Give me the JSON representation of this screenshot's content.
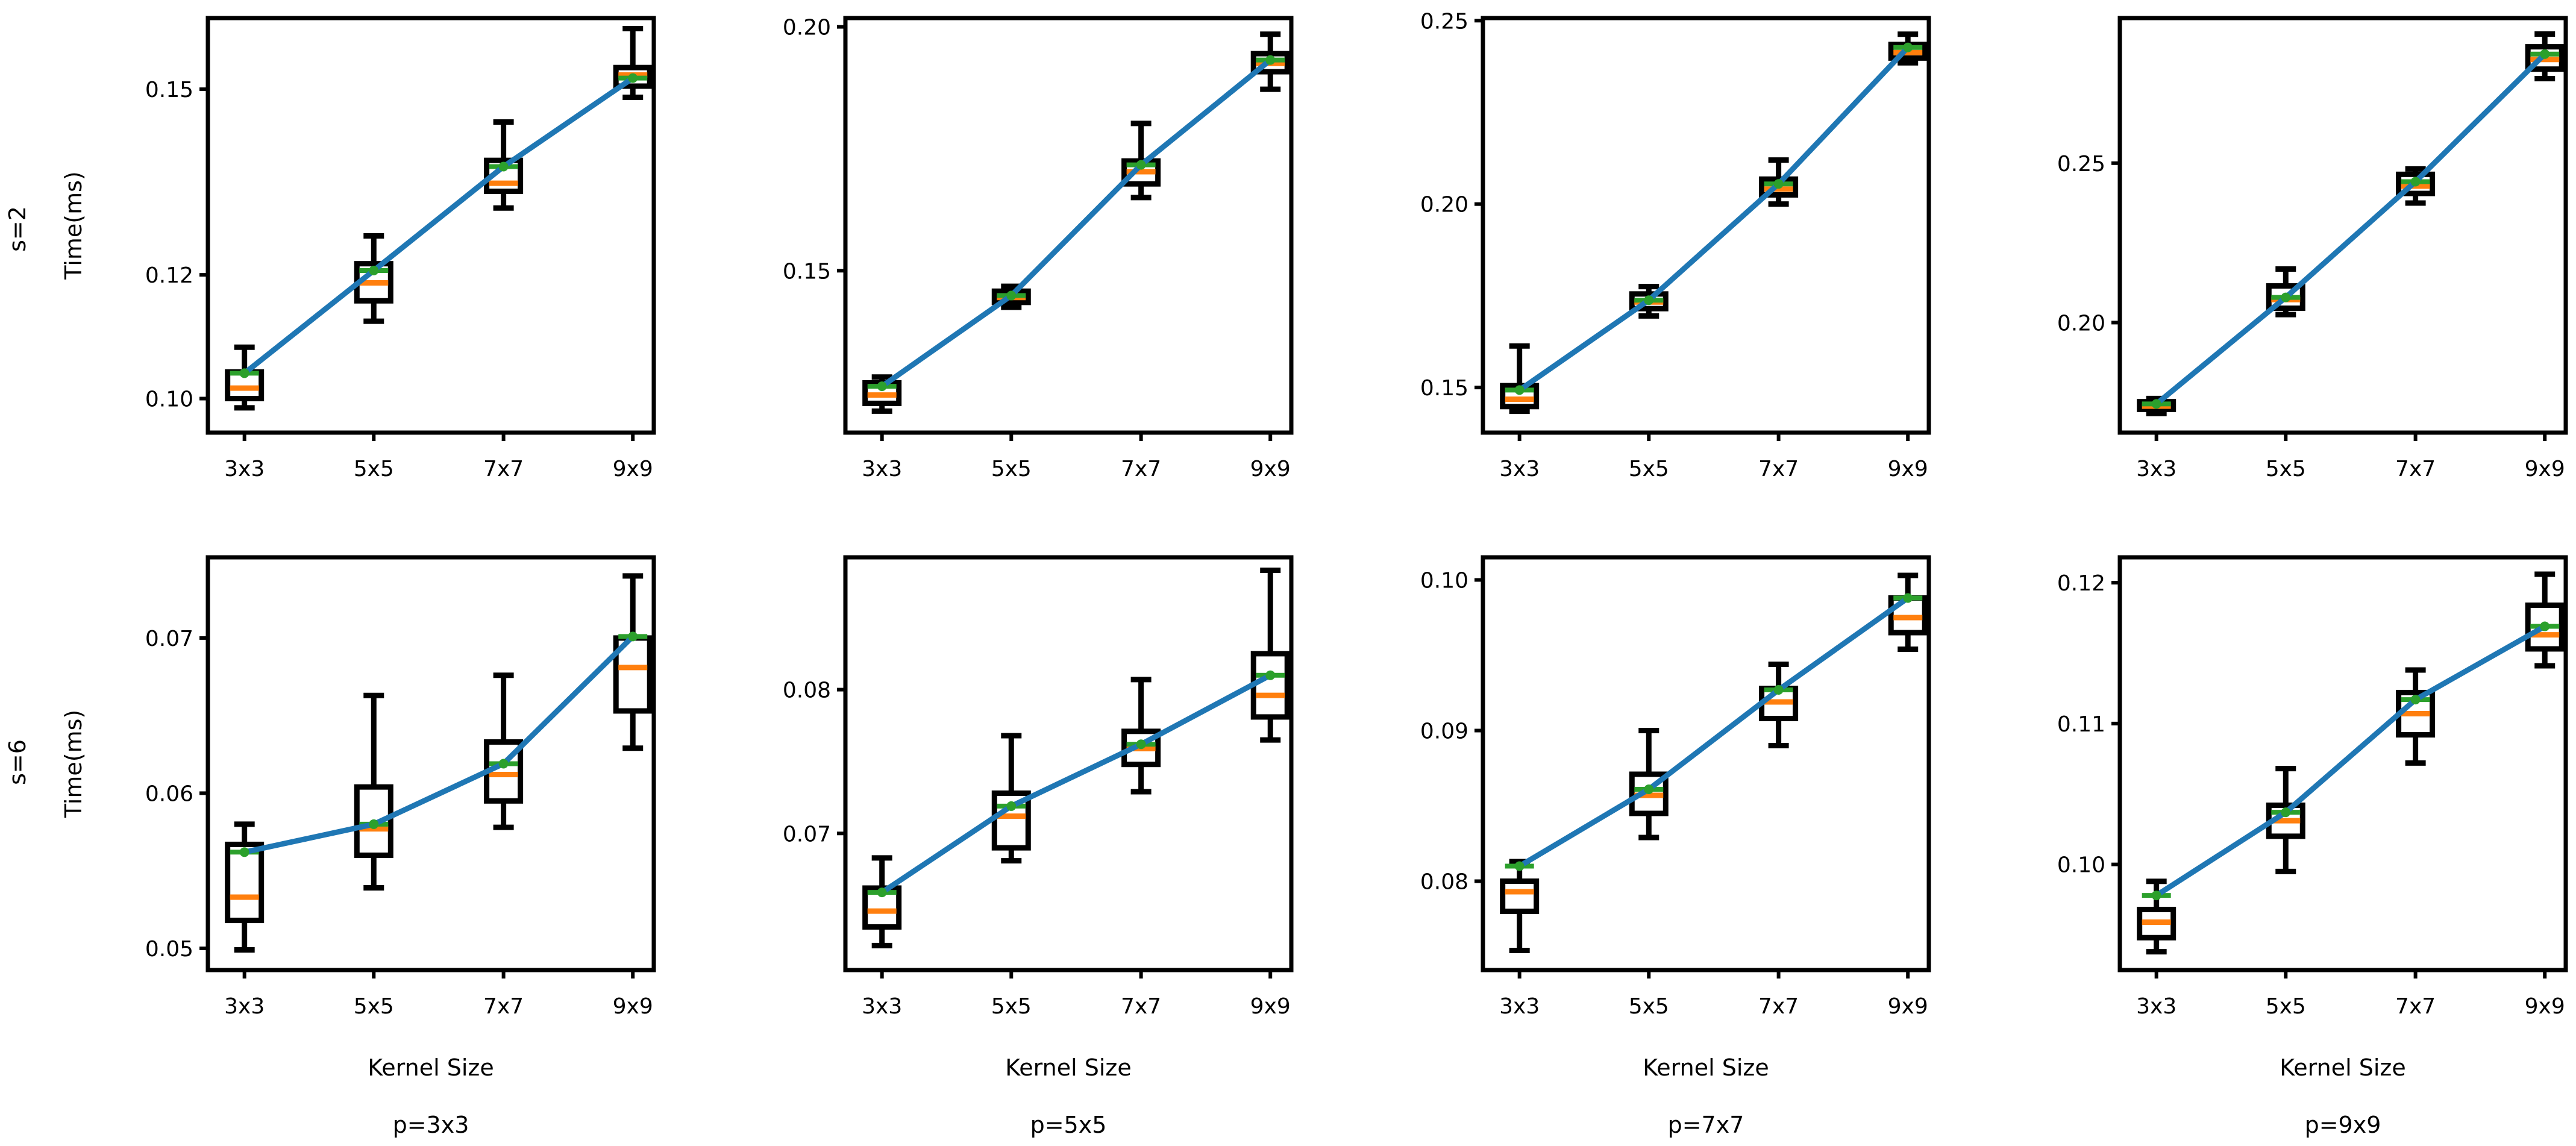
{
  "colors": {
    "line": "#1f77b4",
    "median": "#ff7f0e",
    "mean": "#2ca02c",
    "axes": "#000000"
  },
  "chart_data": {
    "type": "box",
    "title": "",
    "xlabel": "Kernel Size",
    "ylabel": "Time(ms)",
    "row_labels": [
      "s=2",
      "s=6"
    ],
    "col_labels": [
      "p=3x3",
      "p=5x5",
      "p=7x7",
      "p=9x9"
    ],
    "categories": [
      "3x3",
      "5x5",
      "7x7",
      "9x9"
    ],
    "panels": [
      {
        "row": 0,
        "col": 0,
        "ylim": [
          0.0945,
          0.1615
        ],
        "yticks": [
          0.1,
          0.12,
          0.15
        ],
        "ytick_labels": [
          "0.10",
          "0.12",
          "0.15"
        ],
        "boxes": [
          {
            "whislo": 0.0985,
            "q1": 0.1,
            "med": 0.1017,
            "q3": 0.1043,
            "whishi": 0.1083,
            "mean": 0.1041
          },
          {
            "whislo": 0.1125,
            "q1": 0.1158,
            "med": 0.1187,
            "q3": 0.1218,
            "whishi": 0.1263,
            "mean": 0.1207
          },
          {
            "whislo": 0.1308,
            "q1": 0.1335,
            "med": 0.1348,
            "q3": 0.1385,
            "whishi": 0.1447,
            "mean": 0.1375
          },
          {
            "whislo": 0.1487,
            "q1": 0.1505,
            "med": 0.1523,
            "q3": 0.1535,
            "whishi": 0.1598,
            "mean": 0.1518
          }
        ]
      },
      {
        "row": 0,
        "col": 1,
        "ylim": [
          0.1168,
          0.2018
        ],
        "yticks": [
          0.15,
          0.2
        ],
        "ytick_labels": [
          "0.15",
          "0.20"
        ],
        "boxes": [
          {
            "whislo": 0.1212,
            "q1": 0.1228,
            "med": 0.1245,
            "q3": 0.127,
            "whishi": 0.1282,
            "mean": 0.1263
          },
          {
            "whislo": 0.1425,
            "q1": 0.1435,
            "med": 0.1445,
            "q3": 0.1458,
            "whishi": 0.1468,
            "mean": 0.1449
          },
          {
            "whislo": 0.165,
            "q1": 0.1678,
            "med": 0.1703,
            "q3": 0.1725,
            "whishi": 0.1802,
            "mean": 0.1717
          },
          {
            "whislo": 0.1872,
            "q1": 0.1908,
            "med": 0.1925,
            "q3": 0.1945,
            "whishi": 0.1985,
            "mean": 0.1932
          }
        ]
      },
      {
        "row": 0,
        "col": 2,
        "ylim": [
          0.1377,
          0.2507
        ],
        "yticks": [
          0.15,
          0.2,
          0.25
        ],
        "ytick_labels": [
          "0.15",
          "0.20",
          "0.25"
        ],
        "boxes": [
          {
            "whislo": 0.1435,
            "q1": 0.1448,
            "med": 0.1468,
            "q3": 0.1505,
            "whishi": 0.1613,
            "mean": 0.1493
          },
          {
            "whislo": 0.1695,
            "q1": 0.1715,
            "med": 0.1733,
            "q3": 0.1755,
            "whishi": 0.1775,
            "mean": 0.1738
          },
          {
            "whislo": 0.2,
            "q1": 0.2025,
            "med": 0.2041,
            "q3": 0.2068,
            "whishi": 0.212,
            "mean": 0.2055
          },
          {
            "whislo": 0.2385,
            "q1": 0.2398,
            "med": 0.2413,
            "q3": 0.2435,
            "whishi": 0.2463,
            "mean": 0.2427
          }
        ]
      },
      {
        "row": 0,
        "col": 3,
        "ylim": [
          0.1655,
          0.2955
        ],
        "yticks": [
          0.2,
          0.25
        ],
        "ytick_labels": [
          "0.20",
          "0.25"
        ],
        "boxes": [
          {
            "whislo": 0.1715,
            "q1": 0.1728,
            "med": 0.1738,
            "q3": 0.1752,
            "whishi": 0.1762,
            "mean": 0.1745
          },
          {
            "whislo": 0.2025,
            "q1": 0.2045,
            "med": 0.2072,
            "q3": 0.2115,
            "whishi": 0.2168,
            "mean": 0.2079
          },
          {
            "whislo": 0.2375,
            "q1": 0.2405,
            "med": 0.2428,
            "q3": 0.2465,
            "whishi": 0.2482,
            "mean": 0.2442
          },
          {
            "whislo": 0.2765,
            "q1": 0.2795,
            "med": 0.2825,
            "q3": 0.2865,
            "whishi": 0.2905,
            "mean": 0.2842
          }
        ]
      },
      {
        "row": 1,
        "col": 0,
        "ylim": [
          0.0486,
          0.0752
        ],
        "yticks": [
          0.05,
          0.06,
          0.07
        ],
        "ytick_labels": [
          "0.05",
          "0.06",
          "0.07"
        ],
        "boxes": [
          {
            "whislo": 0.0499,
            "q1": 0.0518,
            "med": 0.0533,
            "q3": 0.0567,
            "whishi": 0.058,
            "mean": 0.0562
          },
          {
            "whislo": 0.0539,
            "q1": 0.056,
            "med": 0.0577,
            "q3": 0.0604,
            "whishi": 0.0663,
            "mean": 0.058
          },
          {
            "whislo": 0.0578,
            "q1": 0.0595,
            "med": 0.0612,
            "q3": 0.0633,
            "whishi": 0.0676,
            "mean": 0.0619
          },
          {
            "whislo": 0.0629,
            "q1": 0.0653,
            "med": 0.0681,
            "q3": 0.07,
            "whishi": 0.074,
            "mean": 0.0701
          }
        ]
      },
      {
        "row": 1,
        "col": 1,
        "ylim": [
          0.0605,
          0.0892
        ],
        "yticks": [
          0.07,
          0.08
        ],
        "ytick_labels": [
          "0.07",
          "0.08"
        ],
        "boxes": [
          {
            "whislo": 0.0622,
            "q1": 0.0635,
            "med": 0.0646,
            "q3": 0.0662,
            "whishi": 0.0683,
            "mean": 0.0659
          },
          {
            "whislo": 0.0681,
            "q1": 0.069,
            "med": 0.0712,
            "q3": 0.0728,
            "whishi": 0.0768,
            "mean": 0.0719
          },
          {
            "whislo": 0.0729,
            "q1": 0.0748,
            "med": 0.0759,
            "q3": 0.0771,
            "whishi": 0.0807,
            "mean": 0.0762
          },
          {
            "whislo": 0.0765,
            "q1": 0.0781,
            "med": 0.0796,
            "q3": 0.0825,
            "whishi": 0.0883,
            "mean": 0.081
          }
        ]
      },
      {
        "row": 1,
        "col": 2,
        "ylim": [
          0.0741,
          0.1015
        ],
        "yticks": [
          0.08,
          0.09,
          0.1
        ],
        "ytick_labels": [
          "0.08",
          "0.09",
          "0.10"
        ],
        "boxes": [
          {
            "whislo": 0.0754,
            "q1": 0.078,
            "med": 0.0793,
            "q3": 0.08,
            "whishi": 0.0813,
            "mean": 0.081
          },
          {
            "whislo": 0.0829,
            "q1": 0.0845,
            "med": 0.0857,
            "q3": 0.0871,
            "whishi": 0.09,
            "mean": 0.0861
          },
          {
            "whislo": 0.089,
            "q1": 0.0908,
            "med": 0.0919,
            "q3": 0.0928,
            "whishi": 0.0944,
            "mean": 0.0927
          },
          {
            "whislo": 0.0954,
            "q1": 0.0965,
            "med": 0.0975,
            "q3": 0.0988,
            "whishi": 0.1003,
            "mean": 0.0988
          }
        ]
      },
      {
        "row": 1,
        "col": 3,
        "ylim": [
          0.0925,
          0.1218
        ],
        "yticks": [
          0.1,
          0.11,
          0.12
        ],
        "ytick_labels": [
          "0.10",
          "0.11",
          "0.12"
        ],
        "boxes": [
          {
            "whislo": 0.0938,
            "q1": 0.0948,
            "med": 0.0959,
            "q3": 0.0968,
            "whishi": 0.0988,
            "mean": 0.0978
          },
          {
            "whislo": 0.0995,
            "q1": 0.102,
            "med": 0.1031,
            "q3": 0.1042,
            "whishi": 0.1068,
            "mean": 0.1037
          },
          {
            "whislo": 0.1072,
            "q1": 0.1092,
            "med": 0.1107,
            "q3": 0.1122,
            "whishi": 0.1138,
            "mean": 0.1117
          },
          {
            "whislo": 0.1141,
            "q1": 0.1153,
            "med": 0.1163,
            "q3": 0.1184,
            "whishi": 0.1206,
            "mean": 0.1169
          }
        ]
      }
    ]
  }
}
